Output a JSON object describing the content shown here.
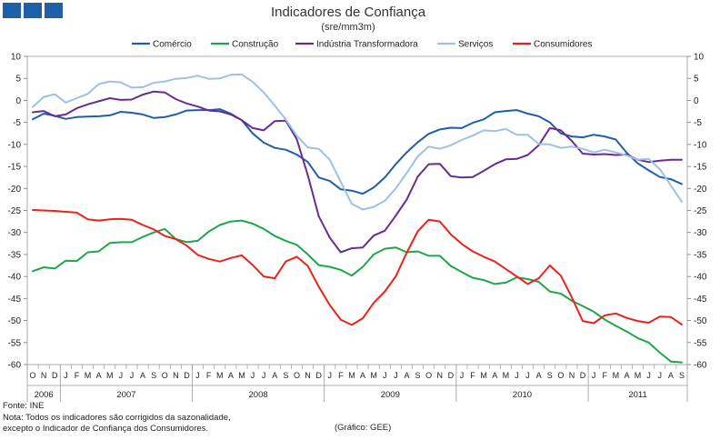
{
  "chart_data": {
    "type": "line",
    "title": "Indicadores de Confiança",
    "subtitle": "(sre/mm3m)",
    "ylim": [
      -60,
      10
    ],
    "yticks": [
      10,
      5,
      0,
      -5,
      -10,
      -15,
      -20,
      -25,
      -30,
      -35,
      -40,
      -45,
      -50,
      -55,
      -60
    ],
    "months": [
      "O",
      "N",
      "D",
      "J",
      "F",
      "M",
      "A",
      "M",
      "J",
      "J",
      "A",
      "S",
      "O",
      "N",
      "D",
      "J",
      "F",
      "M",
      "A",
      "M",
      "J",
      "J",
      "A",
      "S",
      "O",
      "N",
      "D",
      "J",
      "F",
      "M",
      "A",
      "M",
      "J",
      "J",
      "A",
      "S",
      "O",
      "N",
      "D",
      "J",
      "F",
      "M",
      "A",
      "M",
      "J",
      "J",
      "A",
      "S",
      "O",
      "N",
      "D",
      "J",
      "F",
      "M",
      "A",
      "M",
      "J",
      "J",
      "A",
      "S"
    ],
    "years": [
      {
        "label": "2006",
        "start": 0,
        "count": 3
      },
      {
        "label": "2007",
        "start": 3,
        "count": 12
      },
      {
        "label": "2008",
        "start": 15,
        "count": 12
      },
      {
        "label": "2009",
        "start": 27,
        "count": 12
      },
      {
        "label": "2010",
        "start": 39,
        "count": 12
      },
      {
        "label": "2011",
        "start": 51,
        "count": 9
      }
    ],
    "series": [
      {
        "name": "Comércio",
        "color": "#1f5fa8",
        "values": [
          -4.3,
          -3,
          -3.5,
          -4.2,
          -3.8,
          -3.7,
          -3.6,
          -3.4,
          -2.6,
          -2.8,
          -3.2,
          -4,
          -3.8,
          -3.2,
          -2.3,
          -2.2,
          -2.2,
          -2,
          -3,
          -4.5,
          -7.5,
          -9.6,
          -10.8,
          -11.2,
          -12.3,
          -14,
          -17.5,
          -18.3,
          -20.2,
          -20.5,
          -21.2,
          -19.8,
          -17.5,
          -14.5,
          -11.8,
          -9.5,
          -7.6,
          -6.6,
          -6.2,
          -6.3,
          -5.1,
          -4.3,
          -2.7,
          -2.4,
          -2.2,
          -3,
          -3.6,
          -5,
          -7.5,
          -8.2,
          -8.4,
          -7.8,
          -8.2,
          -8.9,
          -11.9,
          -14.3,
          -15.9,
          -17.4,
          -17.9,
          -19
        ]
      },
      {
        "name": "Construção",
        "color": "#1ea64a",
        "values": [
          -38.8,
          -37.9,
          -38.2,
          -36.4,
          -36.5,
          -34.5,
          -34.3,
          -32.4,
          -32.2,
          -32.2,
          -31,
          -30,
          -29.2,
          -31.5,
          -32.2,
          -31.9,
          -29.8,
          -28.3,
          -27.5,
          -27.3,
          -28,
          -29.2,
          -30.8,
          -31.9,
          -32.8,
          -35,
          -37.4,
          -37.8,
          -38.5,
          -39.8,
          -37.8,
          -35,
          -33.7,
          -33.4,
          -34.5,
          -34.3,
          -35.3,
          -35.3,
          -37.6,
          -39,
          -40.3,
          -40.8,
          -41.7,
          -41.4,
          -40.2,
          -40.6,
          -41.2,
          -43.4,
          -43.9,
          -45.5,
          -46.7,
          -48,
          -49.8,
          -51.2,
          -52.5,
          -54,
          -55,
          -57.3,
          -59.3,
          -59.5
        ]
      },
      {
        "name": "Indústria Transformadora",
        "color": "#6a2c8e",
        "values": [
          -2.7,
          -2.4,
          -3.6,
          -3.2,
          -1.8,
          -0.9,
          -0.2,
          0.5,
          0.1,
          0.2,
          1.3,
          2,
          1.8,
          0.3,
          -0.7,
          -1.4,
          -2.3,
          -2.5,
          -3.2,
          -4.5,
          -6.3,
          -6.8,
          -4.7,
          -4.6,
          -8.8,
          -17,
          -26.3,
          -31.2,
          -34.5,
          -33.6,
          -33.4,
          -30.7,
          -29.6,
          -26.2,
          -22.5,
          -17.3,
          -14.5,
          -14.4,
          -17.2,
          -17.5,
          -17.4,
          -16,
          -14.5,
          -13.4,
          -13.3,
          -12.4,
          -10.2,
          -6.3,
          -6.8,
          -9.2,
          -12.1,
          -12.3,
          -12.2,
          -12.4,
          -12.3,
          -13.5,
          -14,
          -13.7,
          -13.5,
          -13.5
        ]
      },
      {
        "name": "Serviços",
        "color": "#9bc2e6",
        "values": [
          -1.5,
          0.8,
          1.4,
          -0.5,
          0.5,
          1.5,
          3.7,
          4.3,
          4.1,
          2.9,
          3,
          4,
          4.3,
          4.9,
          5.1,
          5.6,
          4.9,
          5,
          5.8,
          5.9,
          4.2,
          1.8,
          -1.2,
          -4.3,
          -8,
          -10.7,
          -11,
          -13.5,
          -18.5,
          -23.5,
          -24.8,
          -24.2,
          -22.8,
          -20,
          -16.5,
          -12.7,
          -10.5,
          -11,
          -10.2,
          -9,
          -8,
          -6.8,
          -7,
          -6.5,
          -7.8,
          -7.8,
          -9.9,
          -10,
          -10.8,
          -10.5,
          -11,
          -11.8,
          -11.2,
          -11.8,
          -12.5,
          -13.5,
          -13.3,
          -15.6,
          -19.3,
          -23
        ]
      },
      {
        "name": "Consumidores",
        "color": "#e8231a",
        "values": [
          -24.9,
          -25,
          -25.1,
          -25.3,
          -25.5,
          -27,
          -27.3,
          -27,
          -26.9,
          -27.1,
          -28.3,
          -29.3,
          -30.8,
          -31.5,
          -33,
          -35.1,
          -36,
          -36.6,
          -35.8,
          -35.2,
          -37.4,
          -40,
          -40.4,
          -36.6,
          -35.5,
          -37.6,
          -42.3,
          -46.5,
          -49.8,
          -51,
          -49.5,
          -46,
          -43.4,
          -40,
          -34.6,
          -29.7,
          -27.1,
          -27.5,
          -30.4,
          -32.6,
          -34.3,
          -35.5,
          -36.6,
          -38.3,
          -40,
          -41.7,
          -40.4,
          -37.5,
          -39.8,
          -44.7,
          -50.1,
          -50.6,
          -48.8,
          -48.4,
          -49.4,
          -50.1,
          -50.5,
          -49.1,
          -49.2,
          -50.9
        ]
      }
    ]
  },
  "footer": {
    "source": "Fonte: INE",
    "note_line1": "Nota: Todos os indicadores são corrigidos da sazonalidade,",
    "note_line2": "excepto o Indicador de Confiança dos Consumidores.",
    "credit": "(Gráfico: GEE)"
  }
}
